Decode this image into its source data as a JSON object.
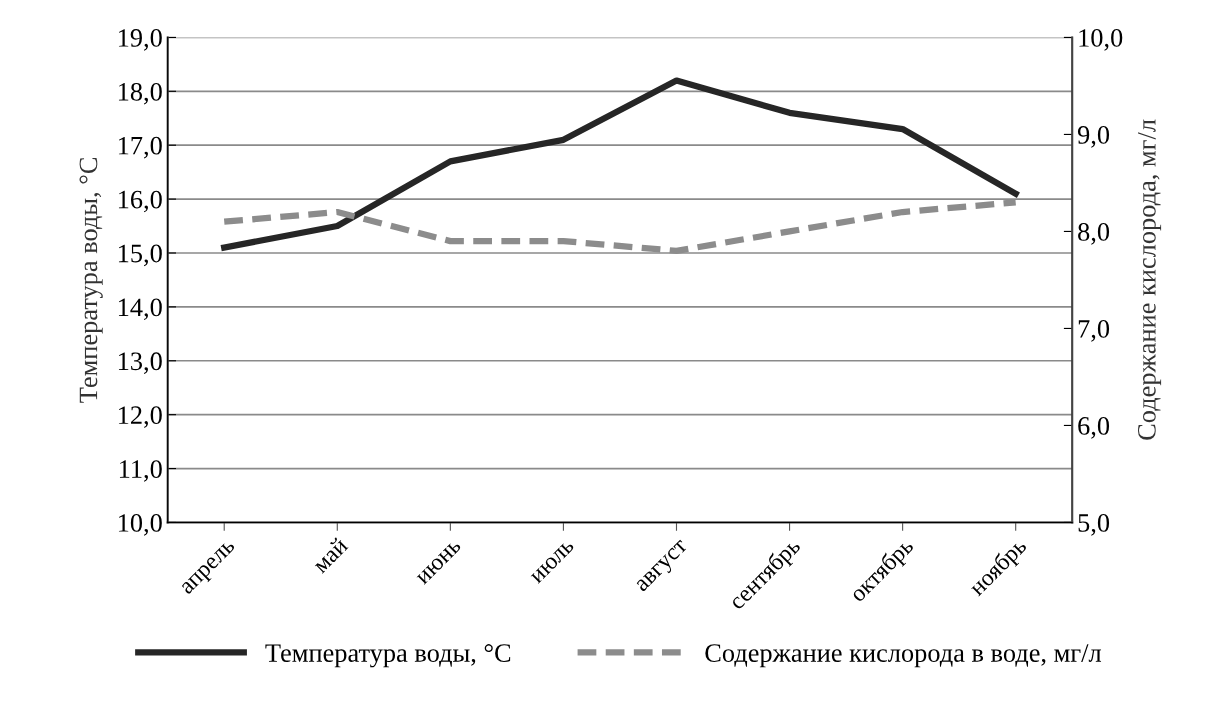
{
  "chart_data": {
    "type": "line",
    "categories": [
      "апрель",
      "май",
      "июнь",
      "июль",
      "август",
      "сентябрь",
      "октябрь",
      "ноябрь"
    ],
    "series": [
      {
        "name": "Температура воды, °С",
        "color": "#262626",
        "line_style": "solid",
        "values": [
          15.1,
          15.5,
          16.7,
          17.1,
          18.2,
          17.6,
          17.3,
          16.1
        ]
      },
      {
        "name": "Содержание кислорода в воде, мг/л",
        "color": "#8c8c8c",
        "line_style": "dashed",
        "axis": "y2",
        "values": [
          8.1,
          8.2,
          7.9,
          7.9,
          7.8,
          8.0,
          8.2,
          8.3
        ]
      }
    ],
    "ylabel": "Температура воды, °С",
    "y2label": "Содержание кислорода, мг/л",
    "ylim": [
      10,
      19
    ],
    "yticks": [
      {
        "value": 10,
        "label": "10,0"
      },
      {
        "value": 11,
        "label": "11,0"
      },
      {
        "value": 12,
        "label": "12,0"
      },
      {
        "value": 13,
        "label": "13,0"
      },
      {
        "value": 14,
        "label": "14,0"
      },
      {
        "value": 15,
        "label": "15,0"
      },
      {
        "value": 16,
        "label": "16,0"
      },
      {
        "value": 17,
        "label": "17,0"
      },
      {
        "value": 18,
        "label": "18,0"
      },
      {
        "value": 19,
        "label": "19,0"
      }
    ],
    "y2lim": [
      5,
      10
    ],
    "y2ticks": [
      {
        "value": 5,
        "label": "5,0"
      },
      {
        "value": 6,
        "label": "6,0"
      },
      {
        "value": 7,
        "label": "7,0"
      },
      {
        "value": 8,
        "label": "8,0"
      },
      {
        "value": 9,
        "label": "9,0"
      },
      {
        "value": 10,
        "label": "10,0"
      }
    ],
    "grid": "y",
    "legend": "bottom",
    "marker": "none"
  }
}
